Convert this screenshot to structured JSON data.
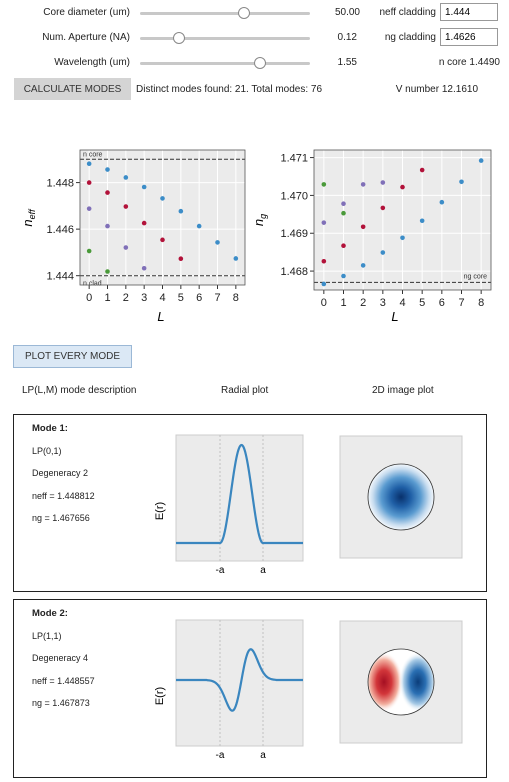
{
  "controls": [
    {
      "label": "Core diameter (um)",
      "value": "50.00",
      "thumb": 0.62
    },
    {
      "label": "Num. Aperture (NA)",
      "value": "0.12",
      "thumb": 0.23
    },
    {
      "label": "Wavelength (um)",
      "value": "1.55",
      "thumb": 0.71
    }
  ],
  "props": {
    "neff_cladding_label": "neff cladding",
    "neff_cladding_value": "1.444",
    "ng_cladding_label": "ng cladding",
    "ng_cladding_value": "1.4626",
    "n_core_text": "n core 1.4490",
    "v_number_text": "V number 12.1610"
  },
  "calc_button": "CALCULATE MODES",
  "summary_text": "Distinct modes found: 21. Total modes: 76",
  "plot_button": "PLOT EVERY MODE",
  "columns": {
    "desc": "LP(L,M) mode description",
    "radial": "Radial plot",
    "image": "2D image plot"
  },
  "chart_data": [
    {
      "type": "scatter",
      "title": "",
      "xlabel": "L",
      "ylabel": "n_eff",
      "xlim": [
        -0.5,
        8.5
      ],
      "ylim": [
        1.4436,
        1.4494
      ],
      "xticks": [
        "0",
        "1",
        "2",
        "3",
        "4",
        "5",
        "6",
        "7",
        "8"
      ],
      "yticks": [
        "1.444",
        "1.446",
        "1.448"
      ],
      "lines": [
        {
          "label": "n core",
          "y": 1.449
        },
        {
          "label": "n clad",
          "y": 1.444
        }
      ],
      "series": [
        {
          "color": "#3c8dc8",
          "x": [
            0,
            1,
            2,
            3,
            4,
            5,
            6,
            7,
            8
          ],
          "y": [
            1.44881,
            1.44856,
            1.44822,
            1.44781,
            1.44732,
            1.44677,
            1.44613,
            1.44543,
            1.44474
          ]
        },
        {
          "color": "#b2123a",
          "x": [
            0,
            1,
            2,
            3,
            4,
            5
          ],
          "y": [
            1.448,
            1.44757,
            1.44697,
            1.44626,
            1.44554,
            1.44473
          ]
        },
        {
          "color": "#8070b8",
          "x": [
            0,
            1,
            2,
            3
          ],
          "y": [
            1.44688,
            1.44613,
            1.44521,
            1.44432
          ]
        },
        {
          "color": "#4a9a3a",
          "x": [
            0,
            1
          ],
          "y": [
            1.44506,
            1.44418
          ]
        }
      ]
    },
    {
      "type": "scatter",
      "title": "",
      "xlabel": "L",
      "ylabel": "n_g",
      "xlim": [
        -0.5,
        8.5
      ],
      "ylim": [
        1.4675,
        1.4712
      ],
      "xticks": [
        "0",
        "1",
        "2",
        "3",
        "4",
        "5",
        "6",
        "7",
        "8"
      ],
      "yticks": [
        "1.468",
        "1.469",
        "1.470",
        "1.471"
      ],
      "lines": [
        {
          "label": "ng core",
          "y": 1.4677
        }
      ],
      "series": [
        {
          "color": "#3c8dc8",
          "x": [
            0,
            1,
            2,
            3,
            4,
            5,
            6,
            7,
            8
          ],
          "y": [
            1.46766,
            1.46787,
            1.46815,
            1.46849,
            1.46888,
            1.46933,
            1.46982,
            1.47036,
            1.47092
          ]
        },
        {
          "color": "#b2123a",
          "x": [
            0,
            1,
            2,
            3,
            4,
            5
          ],
          "y": [
            1.46826,
            1.46867,
            1.46917,
            1.46967,
            1.47022,
            1.47067
          ]
        },
        {
          "color": "#8070b8",
          "x": [
            0,
            1,
            2,
            3
          ],
          "y": [
            1.46928,
            1.46978,
            1.47029,
            1.47034
          ]
        },
        {
          "color": "#4a9a3a",
          "x": [
            0,
            1
          ],
          "y": [
            1.47029,
            1.46953
          ]
        }
      ]
    },
    {
      "type": "line",
      "ylabel": "E(r)",
      "xticks": [
        "-a",
        "a"
      ],
      "mode": "LP01"
    },
    {
      "type": "line",
      "ylabel": "E(r)",
      "xticks": [
        "-a",
        "a"
      ],
      "mode": "LP11"
    }
  ],
  "modes": [
    {
      "title": "Mode 1:",
      "name": "LP(0,1)",
      "degeneracy": "Degeneracy 2",
      "neff": "neff = 1.448812",
      "ng": "ng = 1.467656"
    },
    {
      "title": "Mode 2:",
      "name": "LP(1,1)",
      "degeneracy": "Degeneracy 4",
      "neff": "neff = 1.448557",
      "ng": "ng = 1.467873"
    }
  ],
  "icons": {
    "slider_thumb": "circle-thumb-icon"
  }
}
